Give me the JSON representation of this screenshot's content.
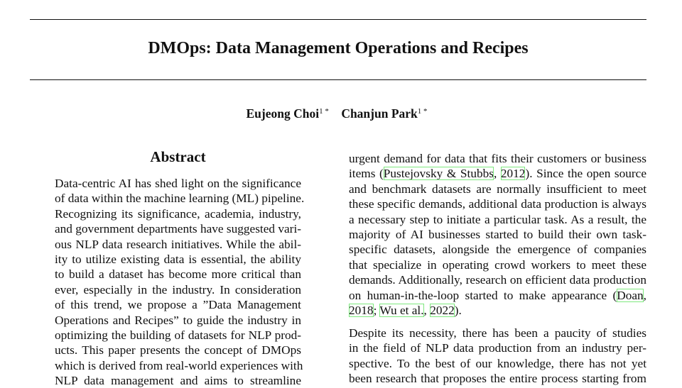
{
  "paper": {
    "title": "DMOps: Data Management Operations and Recipes",
    "authors": [
      {
        "name": "Eujeong Choi",
        "affil": "1 *"
      },
      {
        "name": "Chanjun Park",
        "affil": "1 *"
      }
    ],
    "abstract_heading": "Abstract",
    "citation_box_color": "#7ee87e",
    "left_column": [
      [
        [
          {
            "t": "Data-centric AI has shed light on the significance"
          }
        ],
        [
          {
            "t": "of data within the machine learning (ML) pipeline."
          }
        ],
        [
          {
            "t": "Recognizing its significance, academia, industry,"
          }
        ],
        [
          {
            "t": "and government departments have suggested vari-"
          }
        ],
        [
          {
            "t": "ous NLP data research initiatives. While the abil-"
          }
        ],
        [
          {
            "t": "ity to utilize existing data is essential, the ability"
          }
        ],
        [
          {
            "t": "to build a dataset has become more critical than"
          }
        ],
        [
          {
            "t": "ever, especially in the industry. In consideration"
          }
        ],
        [
          {
            "t": "of this trend, we propose a ”Data Management"
          }
        ],
        [
          {
            "t": "Operations and Recipes” to guide the industry in"
          }
        ],
        [
          {
            "t": "optimizing the building of datasets for NLP prod-"
          }
        ],
        [
          {
            "t": "ucts. This paper presents the concept of DMOps"
          }
        ],
        [
          {
            "t": "which is derived from real-world experiences with"
          }
        ],
        [
          {
            "t": "NLP data management and aims to streamline"
          }
        ]
      ]
    ],
    "right_column": [
      [
        [
          {
            "t": "urgent demand for data that fits their customers or business"
          }
        ],
        [
          {
            "t": "items ("
          },
          {
            "t": "Pustejovsky & Stubbs",
            "c": 1
          },
          {
            "t": ", "
          },
          {
            "t": "2012",
            "c": 1
          },
          {
            "t": "). Since the open source"
          }
        ],
        [
          {
            "t": "and benchmark datasets are normally insufficient to meet"
          }
        ],
        [
          {
            "t": "these specific demands, additional data production is always"
          }
        ],
        [
          {
            "t": "a necessary step to initiate a particular task. As a result, the"
          }
        ],
        [
          {
            "t": "majority of AI businesses started to build their own task-"
          }
        ],
        [
          {
            "t": "specific datasets, alongside the emergence of companies"
          }
        ],
        [
          {
            "t": "that specialize in operating crowd workers to meet these"
          }
        ],
        [
          {
            "t": "demands. Additionally, research on efficient data production"
          }
        ],
        [
          {
            "t": "on human-in-the-loop started to make appearance ("
          },
          {
            "t": "Doan",
            "c": 1
          },
          {
            "t": ","
          }
        ],
        [
          {
            "t": "2018",
            "c": 1
          },
          {
            "t": "; "
          },
          {
            "t": "Wu et al.",
            "c": 1
          },
          {
            "t": ", "
          },
          {
            "t": "2022",
            "c": 1
          },
          {
            "t": ")."
          }
        ]
      ],
      [
        [
          {
            "t": "Despite its necessity, there has been a paucity of studies"
          }
        ],
        [
          {
            "t": "in the field of NLP data production from an industry per-"
          }
        ],
        [
          {
            "t": "spective. To the best of our knowledge, there has not yet"
          }
        ],
        [
          {
            "t": "been research that proposes the entire process starting from"
          }
        ]
      ]
    ]
  }
}
